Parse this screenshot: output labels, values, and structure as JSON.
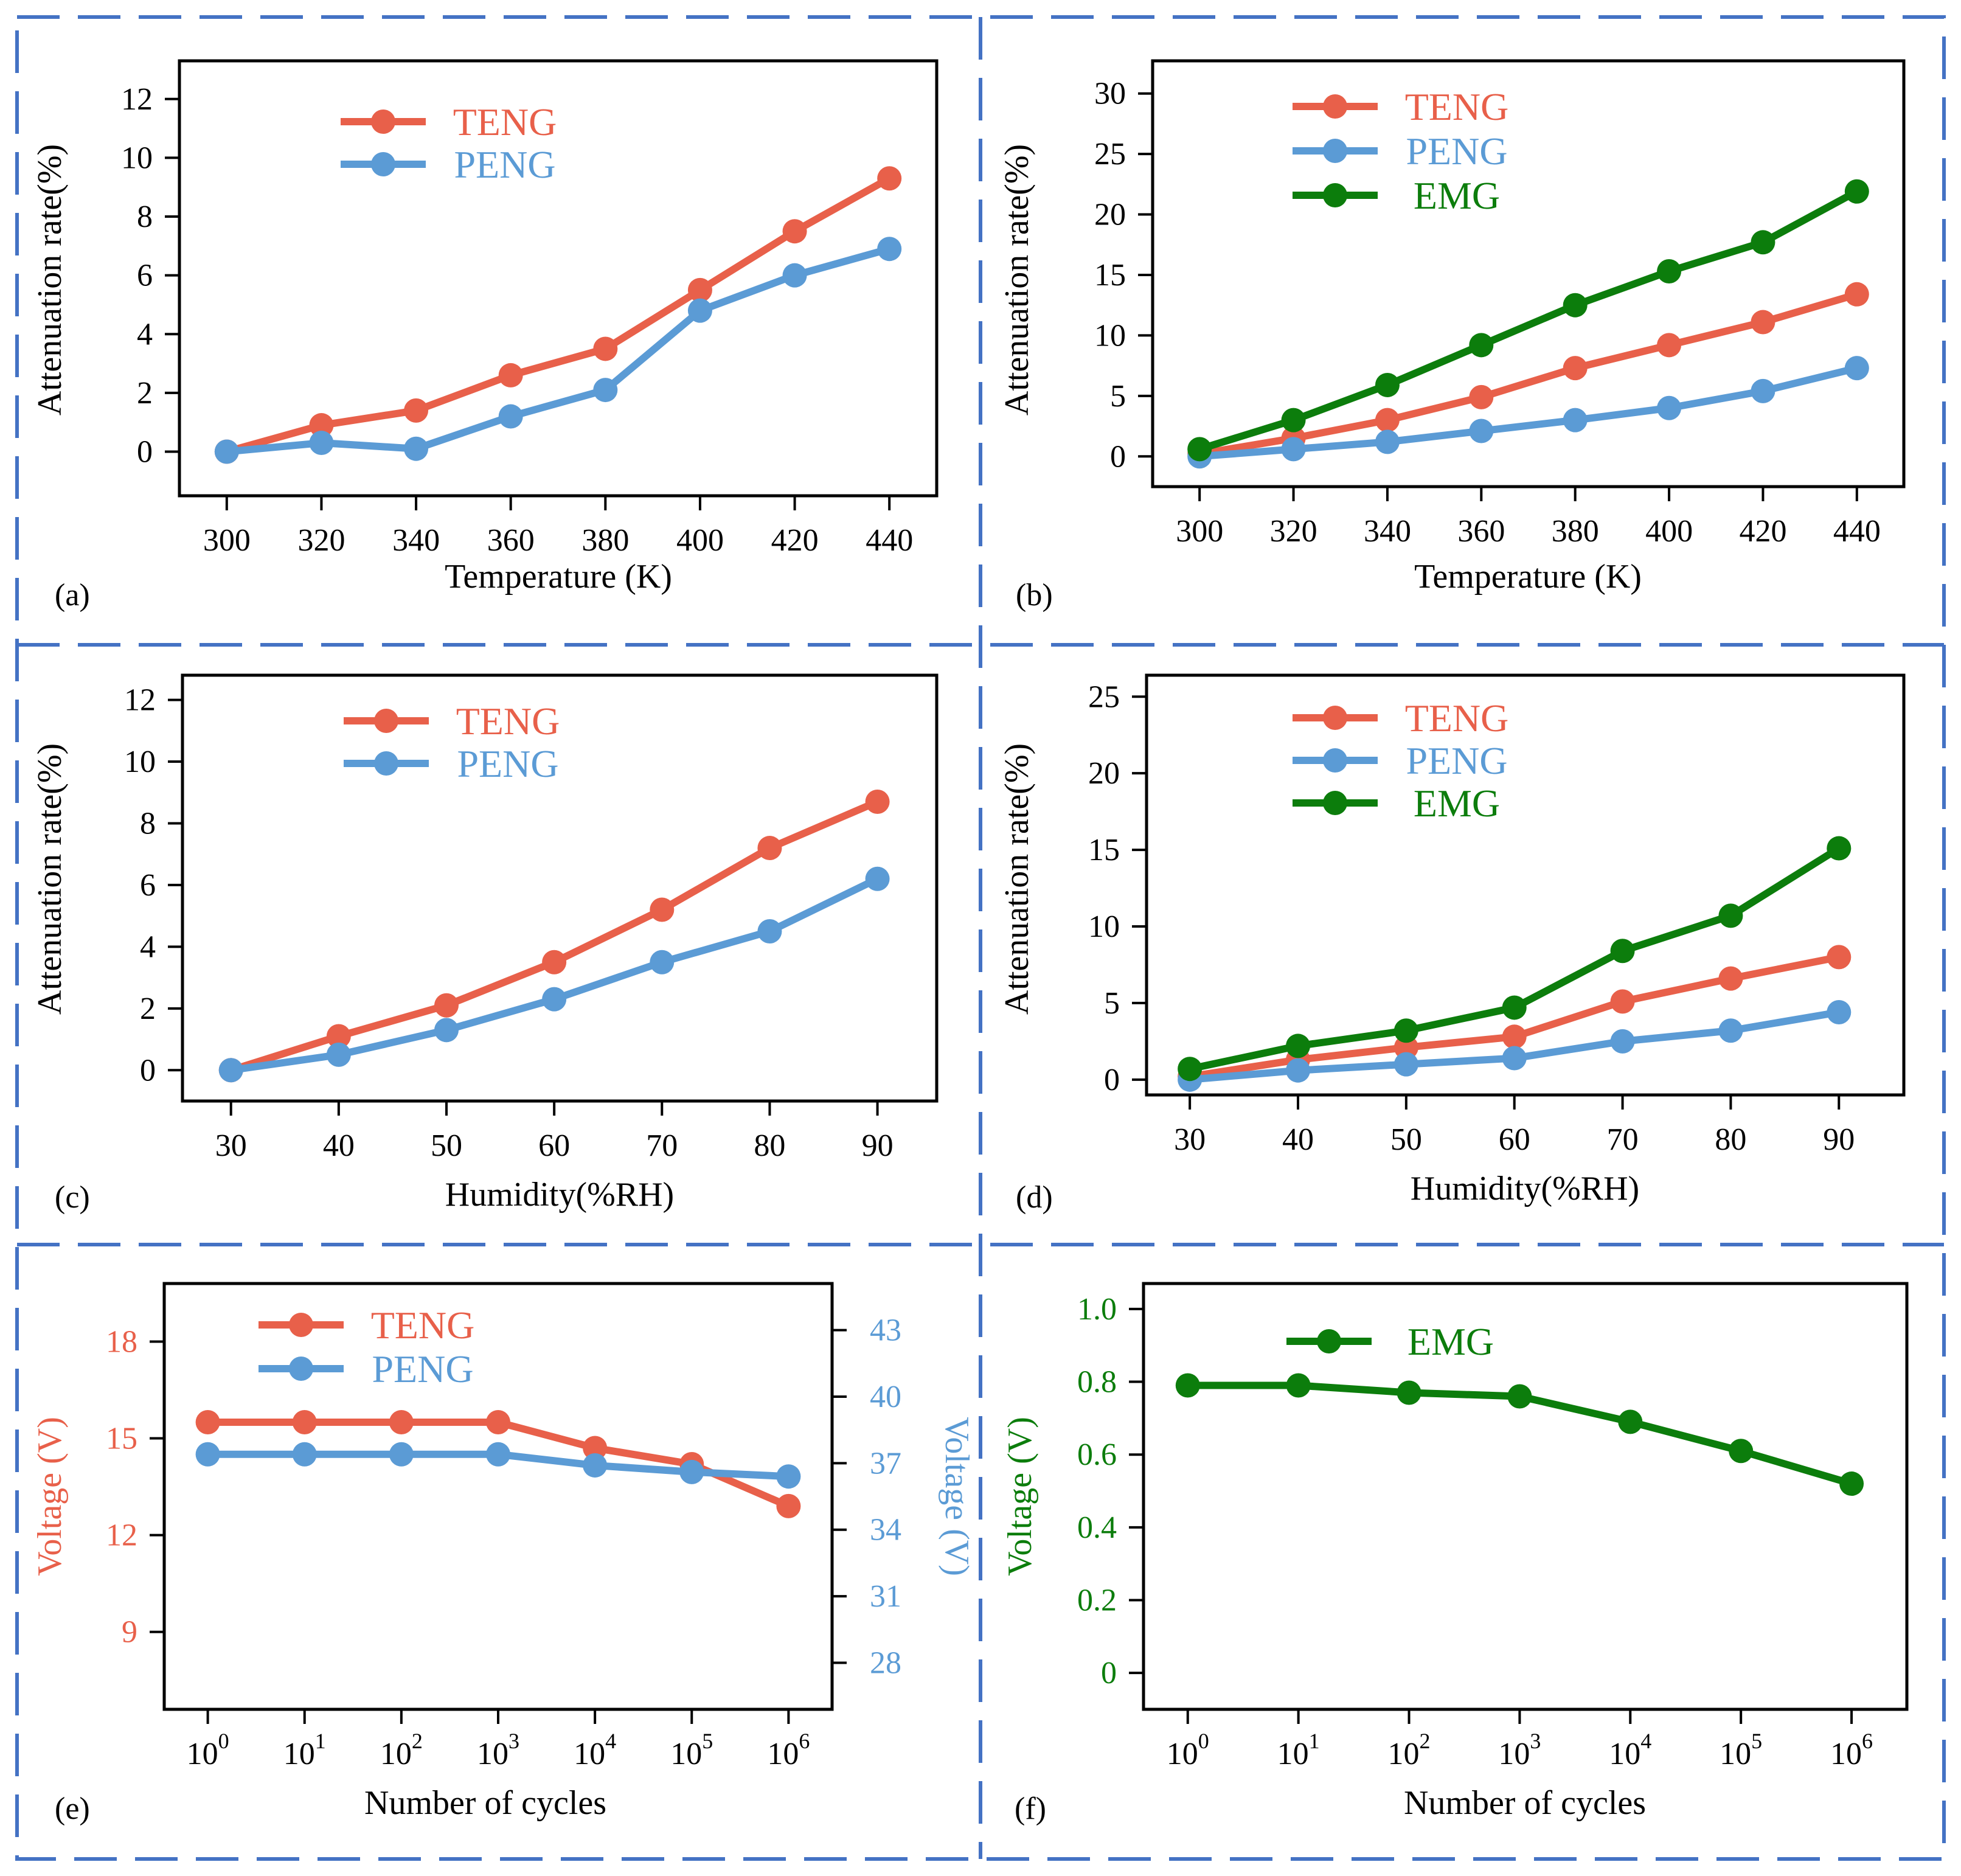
{
  "colors": {
    "teng": "#e8604a",
    "peng": "#5b9bd5",
    "emg": "#0c7d0c",
    "divider": "#4472c4",
    "axis": "#000000"
  },
  "chart_data": [
    {
      "type": "line",
      "panel_label": "(a)",
      "xlabel": "Temperature (K)",
      "ylabel": "Attenuation rate(%)",
      "x": [
        300,
        320,
        340,
        360,
        380,
        400,
        420,
        440
      ],
      "x_ticks": [
        "300",
        "320",
        "340",
        "360",
        "380",
        "400",
        "420",
        "440"
      ],
      "xlim": [
        290,
        450
      ],
      "ylim": [
        -1.5,
        13.3
      ],
      "y_ticks": [
        0,
        2,
        4,
        6,
        8,
        10,
        12
      ],
      "legend_position": "top-center",
      "series": [
        {
          "name": "TENG",
          "color_key": "teng",
          "values": [
            0.0,
            0.9,
            1.4,
            2.6,
            3.5,
            5.5,
            7.5,
            9.3
          ]
        },
        {
          "name": "PENG",
          "color_key": "peng",
          "values": [
            0.0,
            0.3,
            0.1,
            1.2,
            2.1,
            4.8,
            6.0,
            6.9
          ]
        }
      ]
    },
    {
      "type": "line",
      "panel_label": "(b)",
      "xlabel": "Temperature (K)",
      "ylabel": "Attenuation rate(%)",
      "x": [
        300,
        320,
        340,
        360,
        380,
        400,
        420,
        440
      ],
      "x_ticks": [
        "300",
        "320",
        "340",
        "360",
        "380",
        "400",
        "420",
        "440"
      ],
      "xlim": [
        290,
        450
      ],
      "ylim": [
        -2.5,
        32.7
      ],
      "y_ticks": [
        0,
        5,
        10,
        15,
        20,
        25,
        30
      ],
      "legend_position": "top-center",
      "series": [
        {
          "name": "TENG",
          "color_key": "teng",
          "values": [
            0.2,
            1.5,
            3.0,
            4.9,
            7.3,
            9.2,
            11.1,
            13.4
          ]
        },
        {
          "name": "PENG",
          "color_key": "peng",
          "values": [
            0.0,
            0.6,
            1.2,
            2.1,
            3.0,
            4.0,
            5.4,
            7.3
          ]
        },
        {
          "name": "EMG",
          "color_key": "emg",
          "values": [
            0.6,
            3.0,
            5.9,
            9.2,
            12.5,
            15.3,
            17.7,
            21.9
          ]
        }
      ]
    },
    {
      "type": "line",
      "panel_label": "(c)",
      "xlabel": "Humidity(%RH)",
      "ylabel": "Attenuation rate(%)",
      "x": [
        30,
        40,
        50,
        60,
        70,
        80,
        90
      ],
      "x_ticks": [
        "30",
        "40",
        "50",
        "60",
        "70",
        "80",
        "90"
      ],
      "xlim": [
        25.5,
        95.5
      ],
      "ylim": [
        -1.0,
        12.8
      ],
      "y_ticks": [
        0,
        2,
        4,
        6,
        8,
        10,
        12
      ],
      "legend_position": "top-center",
      "series": [
        {
          "name": "TENG",
          "color_key": "teng",
          "values": [
            0.0,
            1.1,
            2.1,
            3.5,
            5.2,
            7.2,
            8.7
          ]
        },
        {
          "name": "PENG",
          "color_key": "peng",
          "values": [
            0.0,
            0.5,
            1.3,
            2.3,
            3.5,
            4.5,
            6.2
          ]
        }
      ]
    },
    {
      "type": "line",
      "panel_label": "(d)",
      "xlabel": "Humidity(%RH)",
      "ylabel": "Attenuation rate(%)",
      "x": [
        30,
        40,
        50,
        60,
        70,
        80,
        90
      ],
      "x_ticks": [
        "30",
        "40",
        "50",
        "60",
        "70",
        "80",
        "90"
      ],
      "xlim": [
        26,
        96
      ],
      "ylim": [
        -1.0,
        26.4
      ],
      "y_ticks": [
        0,
        5,
        10,
        15,
        20,
        25
      ],
      "legend_position": "top-center",
      "series": [
        {
          "name": "TENG",
          "color_key": "teng",
          "values": [
            0.2,
            1.3,
            2.1,
            2.8,
            5.1,
            6.6,
            8.0
          ]
        },
        {
          "name": "PENG",
          "color_key": "peng",
          "values": [
            0.0,
            0.6,
            1.0,
            1.4,
            2.5,
            3.2,
            4.4
          ]
        },
        {
          "name": "EMG",
          "color_key": "emg",
          "values": [
            0.7,
            2.2,
            3.2,
            4.7,
            8.4,
            10.7,
            15.1
          ]
        }
      ]
    },
    {
      "type": "line",
      "panel_label": "(e)",
      "xlabel": "Number of cycles",
      "ylabel": "Voltage (V)",
      "y2label": "Voltage (V)",
      "x": [
        0,
        1,
        2,
        3,
        4,
        5,
        6
      ],
      "x_scale": "log",
      "x_tick_base": "10",
      "x_tick_exponents": [
        "0",
        "1",
        "2",
        "3",
        "4",
        "5",
        "6"
      ],
      "xlim": [
        -0.45,
        6.45
      ],
      "ylim": [
        6.6,
        19.8
      ],
      "y_ticks": [
        9,
        12,
        15,
        18
      ],
      "y2lim": [
        25.9,
        45.1
      ],
      "y2_ticks": [
        28,
        31,
        34,
        37,
        40,
        43
      ],
      "legend_position": "top-center",
      "series": [
        {
          "name": "TENG",
          "color_key": "teng",
          "axis": "left",
          "values": [
            15.5,
            15.5,
            15.5,
            15.5,
            14.7,
            14.2,
            12.9
          ]
        },
        {
          "name": "PENG",
          "color_key": "peng",
          "axis": "right",
          "values": [
            37.4,
            37.4,
            37.4,
            37.4,
            36.9,
            36.6,
            36.4
          ]
        }
      ]
    },
    {
      "type": "line",
      "panel_label": "(f)",
      "xlabel": "Number of cycles",
      "ylabel": "Voltage (V)",
      "x": [
        0,
        1,
        2,
        3,
        4,
        5,
        6
      ],
      "x_scale": "log",
      "x_tick_base": "10",
      "x_tick_exponents": [
        "0",
        "1",
        "2",
        "3",
        "4",
        "5",
        "6"
      ],
      "xlim": [
        -0.4,
        6.5
      ],
      "ylim": [
        -0.1,
        1.07
      ],
      "y_ticks": [
        0,
        0.2,
        0.4,
        0.6,
        0.8,
        1.0
      ],
      "y_tick_labels": [
        "0",
        "0.2",
        "0.4",
        "0.6",
        "0.8",
        "1.0"
      ],
      "legend_position": "top-center",
      "series": [
        {
          "name": "EMG",
          "color_key": "emg",
          "values": [
            0.79,
            0.79,
            0.77,
            0.76,
            0.69,
            0.61,
            0.52
          ]
        }
      ]
    }
  ]
}
